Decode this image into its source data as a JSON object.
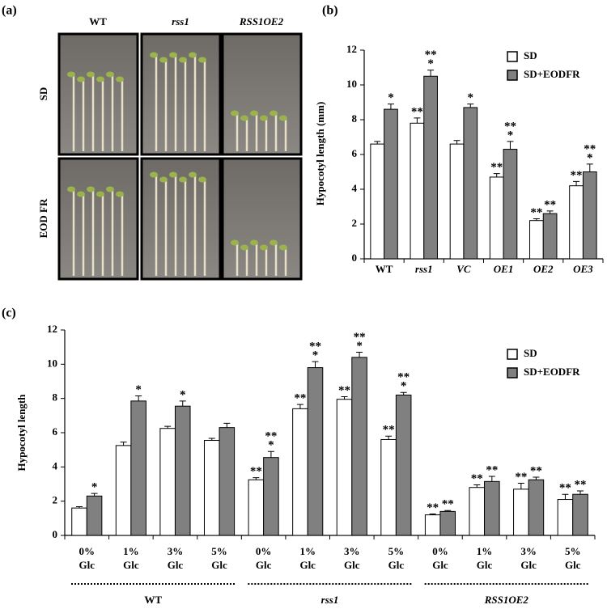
{
  "panel_labels": [
    "(a)",
    "(b)",
    "(c)"
  ],
  "photo_panel": {
    "columns": [
      "WT",
      "rss1",
      "RSS1OE2"
    ],
    "rows": [
      "SD",
      "EOD FR"
    ]
  },
  "chart_data": [
    {
      "type": "bar",
      "y_label": "Hypocotyl length (mm)",
      "categories": [
        "WT",
        "rss1",
        "VC",
        "OE1",
        "OE2",
        "OE3"
      ],
      "ylim": [
        0,
        12
      ],
      "yticks": [
        0,
        2,
        4,
        6,
        8,
        10,
        12
      ],
      "legend": "top-right",
      "series": [
        {
          "name": "SD",
          "color": "#ffffff",
          "values": [
            6.6,
            7.8,
            6.6,
            4.7,
            2.2,
            4.2
          ],
          "errors": [
            0.15,
            0.3,
            0.2,
            0.2,
            0.1,
            0.25
          ],
          "annotations": [
            null,
            [
              "**"
            ],
            null,
            [
              "**"
            ],
            [
              "**"
            ],
            [
              "**"
            ]
          ]
        },
        {
          "name": "SD+EODFR",
          "color": "#808080",
          "values": [
            8.6,
            10.5,
            8.7,
            6.3,
            2.6,
            5.0
          ],
          "errors": [
            0.3,
            0.35,
            0.2,
            0.45,
            0.15,
            0.45
          ],
          "annotations": [
            [
              "*"
            ],
            [
              "**",
              "*"
            ],
            [
              "*"
            ],
            [
              "**",
              "*"
            ],
            [
              "**"
            ],
            [
              "**",
              "*"
            ]
          ]
        }
      ]
    },
    {
      "type": "bar",
      "y_label": "Hypocotyl length",
      "categories": [
        [
          "0%",
          "Glc"
        ],
        [
          "1%",
          "Glc"
        ],
        [
          "3%",
          "Glc"
        ],
        [
          "5%",
          "Glc"
        ],
        [
          "0%",
          "Glc"
        ],
        [
          "1%",
          "Glc"
        ],
        [
          "3%",
          "Glc"
        ],
        [
          "5%",
          "Glc"
        ],
        [
          "0%",
          "Glc"
        ],
        [
          "1%",
          "Glc"
        ],
        [
          "3%",
          "Glc"
        ],
        [
          "5%",
          "Glc"
        ]
      ],
      "groups": [
        "WT",
        "rss1",
        "RSS1OE2"
      ],
      "ylim": [
        0,
        12
      ],
      "yticks": [
        0,
        2,
        4,
        6,
        8,
        10,
        12
      ],
      "legend": "top-right",
      "series": [
        {
          "name": "SD",
          "color": "#ffffff",
          "values": [
            1.6,
            5.25,
            6.25,
            5.55,
            3.25,
            7.4,
            7.95,
            5.6,
            1.2,
            2.8,
            2.7,
            2.1
          ],
          "errors": [
            0.08,
            0.2,
            0.12,
            0.12,
            0.12,
            0.25,
            0.15,
            0.2,
            0.05,
            0.15,
            0.35,
            0.3
          ],
          "annotations": [
            null,
            null,
            null,
            null,
            [
              "**"
            ],
            [
              "**"
            ],
            [
              "**"
            ],
            [
              "**"
            ],
            [
              "**"
            ],
            [
              "**"
            ],
            [
              "**"
            ],
            [
              "**"
            ]
          ]
        },
        {
          "name": "SD+EODFR",
          "color": "#808080",
          "values": [
            2.3,
            7.85,
            7.55,
            6.3,
            4.55,
            9.8,
            10.4,
            8.2,
            1.4,
            3.15,
            3.25,
            2.4
          ],
          "errors": [
            0.15,
            0.3,
            0.3,
            0.25,
            0.35,
            0.35,
            0.3,
            0.15,
            0.05,
            0.3,
            0.15,
            0.2
          ],
          "annotations": [
            [
              "*"
            ],
            [
              "*"
            ],
            [
              "*"
            ],
            null,
            [
              "**",
              "*"
            ],
            [
              "**",
              "*"
            ],
            [
              "**",
              "*"
            ],
            [
              "**",
              "*"
            ],
            [
              "**"
            ],
            [
              "**"
            ],
            [
              "**"
            ],
            [
              "**"
            ]
          ]
        }
      ]
    }
  ]
}
